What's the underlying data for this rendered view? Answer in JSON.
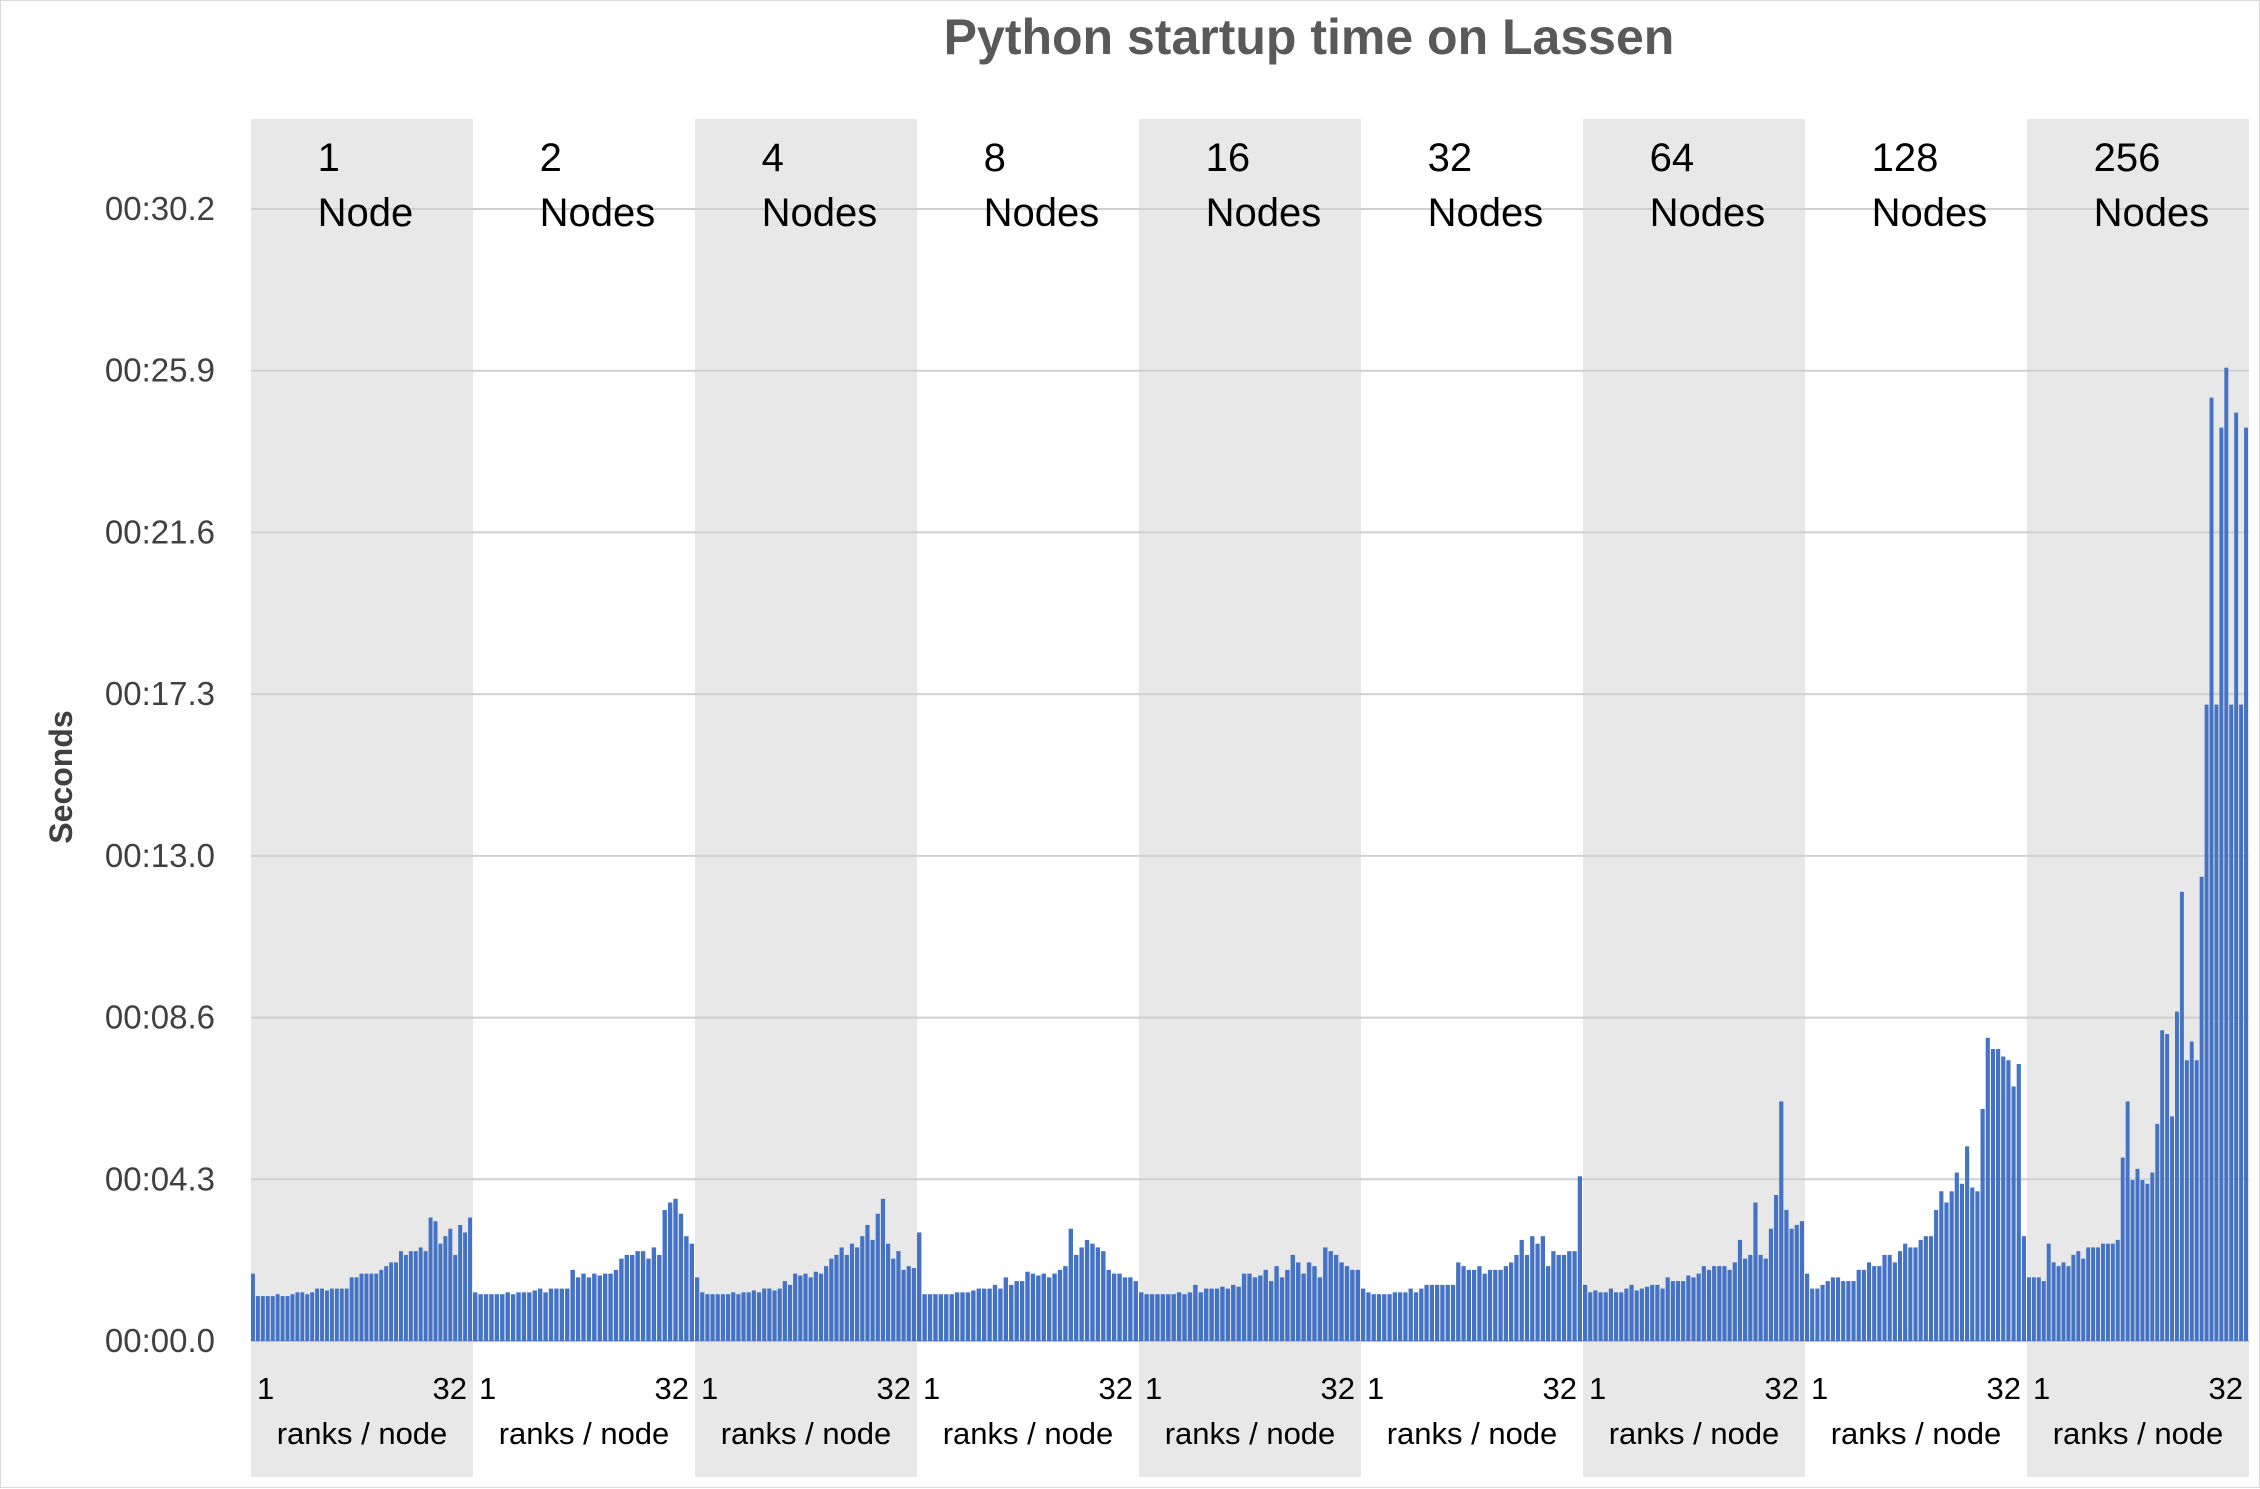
{
  "chart_data": {
    "type": "bar",
    "title": "Python startup time on Lassen",
    "ylabel": "Seconds",
    "y_ticks": [
      "00:00.0",
      "00:04.3",
      "00:08.6",
      "00:13.0",
      "00:17.3",
      "00:21.6",
      "00:25.9",
      "00:30.2"
    ],
    "y_tick_values": [
      0,
      4.32,
      8.64,
      12.96,
      17.28,
      21.6,
      25.92,
      30.24
    ],
    "ylim": [
      0,
      30.24
    ],
    "grid": true,
    "bar_color": "#4472C4",
    "shade_color": "#E8E8E8",
    "groups": [
      {
        "count": "1",
        "unit": "Node",
        "start_rank": "1",
        "end_rank": "32",
        "axis_label": "ranks / node",
        "values": [
          1.8,
          1.2,
          1.2,
          1.2,
          1.2,
          1.25,
          1.2,
          1.2,
          1.25,
          1.3,
          1.3,
          1.25,
          1.3,
          1.4,
          1.4,
          1.35,
          1.4,
          1.4,
          1.4,
          1.4,
          1.7,
          1.7,
          1.8,
          1.8,
          1.8,
          1.8,
          1.9,
          2.0,
          2.1,
          2.1,
          2.4,
          2.3,
          2.4,
          2.4,
          2.5,
          2.4,
          3.3,
          3.2,
          2.6,
          2.8,
          3.0,
          2.3,
          3.1,
          2.9,
          3.3
        ]
      },
      {
        "count": "2",
        "unit": "Nodes",
        "start_rank": "1",
        "end_rank": "32",
        "axis_label": "ranks / node",
        "values": [
          1.3,
          1.25,
          1.25,
          1.25,
          1.25,
          1.25,
          1.3,
          1.25,
          1.3,
          1.3,
          1.3,
          1.35,
          1.4,
          1.3,
          1.4,
          1.4,
          1.4,
          1.4,
          1.9,
          1.7,
          1.8,
          1.7,
          1.8,
          1.75,
          1.8,
          1.8,
          1.9,
          2.2,
          2.3,
          2.3,
          2.4,
          2.4,
          2.2,
          2.5,
          2.3,
          3.5,
          3.7,
          3.8,
          3.4,
          2.8,
          2.6
        ]
      },
      {
        "count": "4",
        "unit": "Nodes",
        "start_rank": "1",
        "end_rank": "32",
        "axis_label": "ranks / node",
        "values": [
          1.7,
          1.3,
          1.25,
          1.25,
          1.25,
          1.25,
          1.25,
          1.3,
          1.25,
          1.3,
          1.3,
          1.35,
          1.3,
          1.4,
          1.4,
          1.35,
          1.4,
          1.6,
          1.5,
          1.8,
          1.75,
          1.8,
          1.7,
          1.85,
          1.8,
          2.0,
          2.2,
          2.3,
          2.5,
          2.3,
          2.6,
          2.5,
          2.8,
          3.1,
          2.7,
          3.4,
          3.8,
          2.6,
          2.2,
          2.4,
          1.9,
          2.0,
          1.95
        ]
      },
      {
        "count": "8",
        "unit": "Nodes",
        "start_rank": "1",
        "end_rank": "32",
        "axis_label": "ranks / node",
        "values": [
          2.9,
          1.25,
          1.25,
          1.25,
          1.25,
          1.25,
          1.25,
          1.3,
          1.3,
          1.3,
          1.35,
          1.4,
          1.4,
          1.4,
          1.5,
          1.4,
          1.7,
          1.5,
          1.6,
          1.6,
          1.85,
          1.8,
          1.75,
          1.8,
          1.7,
          1.8,
          1.9,
          2.0,
          3.0,
          2.3,
          2.5,
          2.7,
          2.6,
          2.5,
          2.4,
          1.9,
          1.8,
          1.8,
          1.7,
          1.7,
          1.6
        ]
      },
      {
        "count": "16",
        "unit": "Nodes",
        "start_rank": "1",
        "end_rank": "32",
        "axis_label": "ranks / node",
        "values": [
          1.3,
          1.25,
          1.25,
          1.25,
          1.25,
          1.25,
          1.25,
          1.3,
          1.25,
          1.3,
          1.5,
          1.3,
          1.4,
          1.4,
          1.4,
          1.45,
          1.4,
          1.5,
          1.45,
          1.8,
          1.8,
          1.7,
          1.75,
          1.9,
          1.6,
          2.0,
          1.7,
          1.9,
          2.3,
          2.1,
          1.8,
          2.1,
          2.0,
          1.7,
          2.5,
          2.4,
          2.3,
          2.1,
          2.0,
          1.9,
          1.9
        ]
      },
      {
        "count": "32",
        "unit": "Nodes",
        "start_rank": "1",
        "end_rank": "32",
        "axis_label": "ranks / node",
        "values": [
          1.4,
          1.3,
          1.25,
          1.25,
          1.25,
          1.25,
          1.3,
          1.3,
          1.3,
          1.4,
          1.3,
          1.4,
          1.5,
          1.5,
          1.5,
          1.5,
          1.5,
          1.5,
          2.1,
          2.0,
          1.9,
          1.9,
          2.0,
          1.8,
          1.9,
          1.9,
          1.9,
          2.0,
          2.1,
          2.3,
          2.7,
          2.3,
          2.8,
          2.6,
          2.8,
          2.0,
          2.4,
          2.3,
          2.3,
          2.4,
          2.4,
          4.4
        ]
      },
      {
        "count": "64",
        "unit": "Nodes",
        "start_rank": "1",
        "end_rank": "32",
        "axis_label": "ranks / node",
        "values": [
          1.5,
          1.3,
          1.35,
          1.3,
          1.3,
          1.4,
          1.3,
          1.3,
          1.4,
          1.5,
          1.35,
          1.4,
          1.45,
          1.5,
          1.5,
          1.4,
          1.7,
          1.6,
          1.6,
          1.6,
          1.75,
          1.7,
          1.8,
          2.0,
          1.9,
          2.0,
          2.0,
          2.0,
          1.9,
          2.1,
          2.7,
          2.2,
          2.3,
          3.7,
          2.3,
          2.2,
          3.0,
          3.9,
          6.4,
          3.5,
          3.0,
          3.1,
          3.2
        ]
      },
      {
        "count": "128",
        "unit": "Nodes",
        "start_rank": "1",
        "end_rank": "32",
        "axis_label": "ranks / node",
        "values": [
          1.8,
          1.4,
          1.4,
          1.5,
          1.6,
          1.7,
          1.7,
          1.6,
          1.6,
          1.6,
          1.9,
          1.9,
          2.1,
          2.0,
          2.0,
          2.3,
          2.3,
          2.1,
          2.4,
          2.6,
          2.5,
          2.5,
          2.7,
          2.8,
          2.8,
          3.5,
          4.0,
          3.7,
          4.0,
          4.5,
          4.2,
          5.2,
          4.1,
          4.0,
          6.2,
          8.1,
          7.8,
          7.8,
          7.6,
          7.5,
          6.8,
          7.4,
          2.8
        ]
      },
      {
        "count": "256",
        "unit": "Nodes",
        "start_rank": "1",
        "end_rank": "32",
        "axis_label": "ranks / node",
        "values": [
          1.7,
          1.7,
          1.7,
          1.6,
          2.6,
          2.1,
          2.0,
          2.1,
          2.0,
          2.3,
          2.4,
          2.2,
          2.5,
          2.5,
          2.5,
          2.6,
          2.6,
          2.6,
          2.7,
          4.9,
          6.4,
          4.3,
          4.6,
          4.3,
          4.2,
          4.5,
          5.8,
          8.3,
          8.2,
          6.0,
          8.8,
          12.0,
          7.5,
          8.0,
          7.5,
          12.4,
          17.0,
          25.2,
          17.0,
          24.4,
          26.0,
          17.0,
          24.8,
          17.0,
          24.4
        ]
      }
    ]
  }
}
